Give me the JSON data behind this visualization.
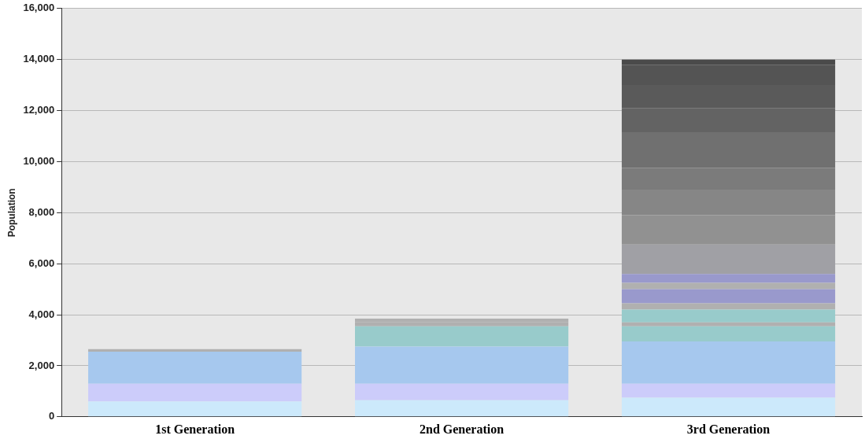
{
  "chart_data": {
    "type": "bar",
    "stacked": true,
    "ylabel": "Population",
    "categories": [
      "1st Generation",
      "2nd Generation",
      "3rd Generation"
    ],
    "ylim": [
      0,
      16000
    ],
    "yticks": [
      0,
      {
        "value": 2000,
        "label": "2,000"
      },
      {
        "value": 4000,
        "label": "4,000"
      },
      {
        "value": 6000,
        "label": "6,000"
      },
      {
        "value": 8000,
        "label": "8,000"
      },
      {
        "value": 10000,
        "label": "10,000"
      },
      {
        "value": 12000,
        "label": "12,000"
      },
      {
        "value": 14000,
        "label": "14,000"
      },
      {
        "value": 16000,
        "label": "16,000"
      }
    ],
    "grid": "y",
    "legend": false,
    "series": [
      {
        "color": "#cce9fb",
        "values": [
          600,
          650,
          750
        ]
      },
      {
        "color": "#ccccfa",
        "values": [
          700,
          650,
          550
        ]
      },
      {
        "color": "#a6c8ee",
        "values": [
          1250,
          1450,
          1650
        ]
      },
      {
        "color": "#98cbcb",
        "values": [
          null,
          800,
          600
        ]
      },
      {
        "color": "#b0b0b0",
        "values": [
          100,
          150,
          150
        ]
      },
      {
        "color": "#98cbcb",
        "values": [
          null,
          null,
          500
        ]
      },
      {
        "color": "#b0b0b0",
        "values": [
          null,
          150,
          250
        ]
      },
      {
        "color": "#9999cc",
        "values": [
          null,
          null,
          550
        ]
      },
      {
        "color": "#b0b0b0",
        "values": [
          null,
          null,
          250
        ]
      },
      {
        "color": "#9999cc",
        "values": [
          null,
          null,
          350
        ]
      },
      {
        "color": "#a0a0a5",
        "values": [
          null,
          null,
          1150
        ]
      },
      {
        "color": "#919191",
        "values": [
          null,
          null,
          1150
        ]
      },
      {
        "color": "#868686",
        "values": [
          null,
          null,
          1000
        ]
      },
      {
        "color": "#7b7b7b",
        "values": [
          null,
          null,
          850
        ]
      },
      {
        "color": "#707070",
        "values": [
          null,
          null,
          1400
        ]
      },
      {
        "color": "#636363",
        "values": [
          null,
          null,
          950
        ]
      },
      {
        "color": "#5a5a5a",
        "values": [
          null,
          null,
          900
        ]
      },
      {
        "color": "#545454",
        "values": [
          null,
          null,
          800
        ]
      },
      {
        "color": "#4a4a4a",
        "values": [
          null,
          null,
          200
        ]
      }
    ]
  }
}
